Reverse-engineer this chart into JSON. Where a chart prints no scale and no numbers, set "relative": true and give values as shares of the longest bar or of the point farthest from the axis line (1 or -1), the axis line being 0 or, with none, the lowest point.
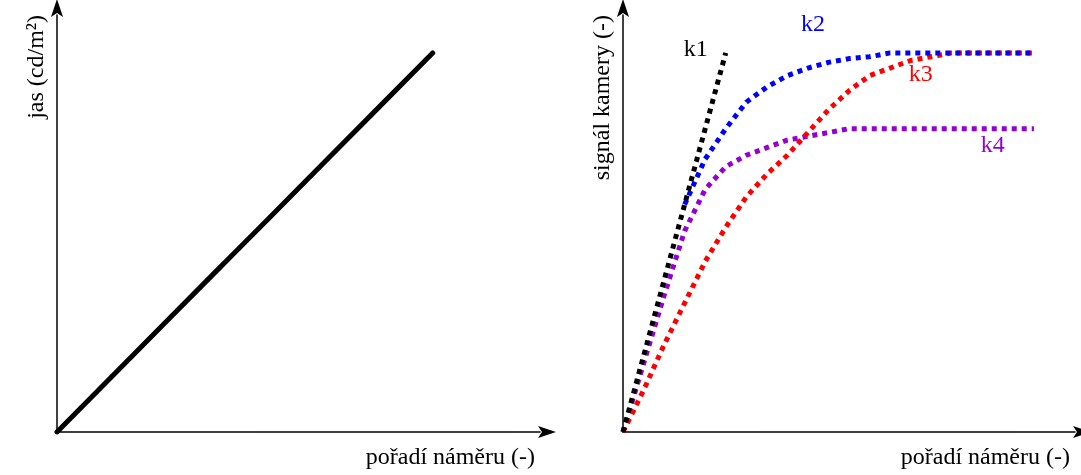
{
  "chart_data": [
    {
      "type": "line",
      "relative": true,
      "xlabel": "pořadí náměru (-)",
      "ylabel": "jas (cd/m²)",
      "categories": [
        null,
        null,
        null,
        null,
        null,
        null,
        null,
        null,
        null,
        null
      ],
      "marker": "none",
      "line_style": "solid",
      "grid": false,
      "legend": false,
      "series": [
        {
          "color": "#000000",
          "values": [
            0,
            0.143,
            0.286,
            0.429,
            0.571,
            0.714,
            0.857,
            1,
            null,
            null
          ]
        }
      ]
    },
    {
      "type": "line",
      "relative": true,
      "xlabel": "pořadí náměru (-)",
      "ylabel": "signál kamery (-)",
      "categories": [
        null,
        null,
        null,
        null,
        null,
        null,
        null,
        null,
        null,
        null,
        null,
        null,
        null,
        null,
        null,
        null,
        null,
        null,
        null,
        null,
        null,
        null,
        null
      ],
      "marker": "none",
      "line_style": "dotted",
      "grid": false,
      "legend": false,
      "series": [
        {
          "name": "k1",
          "color": "#000000",
          "values": [
            0,
            0.2,
            0.4,
            0.6,
            0.8,
            1,
            null,
            null,
            null,
            null,
            null,
            null,
            null,
            null,
            null,
            null,
            null,
            null,
            null,
            null,
            null,
            null,
            null
          ]
        },
        {
          "name": "k2",
          "color": "#0000ff",
          "values": [
            null,
            null,
            null,
            0.6,
            0.72,
            0.8,
            0.87,
            0.91,
            0.94,
            0.96,
            0.975,
            0.985,
            0.99,
            1,
            1,
            1,
            1,
            1,
            1,
            1,
            1,
            null,
            null
          ]
        },
        {
          "name": "k3",
          "color": "#ff0000",
          "values": [
            0,
            0.11,
            0.23,
            0.34,
            0.45,
            0.54,
            0.62,
            0.68,
            0.73,
            0.79,
            0.85,
            0.9,
            0.94,
            0.96,
            0.98,
            0.99,
            1,
            1,
            1,
            1,
            1,
            null,
            null
          ]
        },
        {
          "name": "k4",
          "color": "#9400d3",
          "values": [
            0,
            0.18,
            0.36,
            0.53,
            0.64,
            0.7,
            0.73,
            0.75,
            0.77,
            0.78,
            0.79,
            0.8,
            0.8,
            0.8,
            0.8,
            0.8,
            0.8,
            0.8,
            0.8,
            0.8,
            0.8,
            null,
            null
          ]
        }
      ]
    }
  ]
}
